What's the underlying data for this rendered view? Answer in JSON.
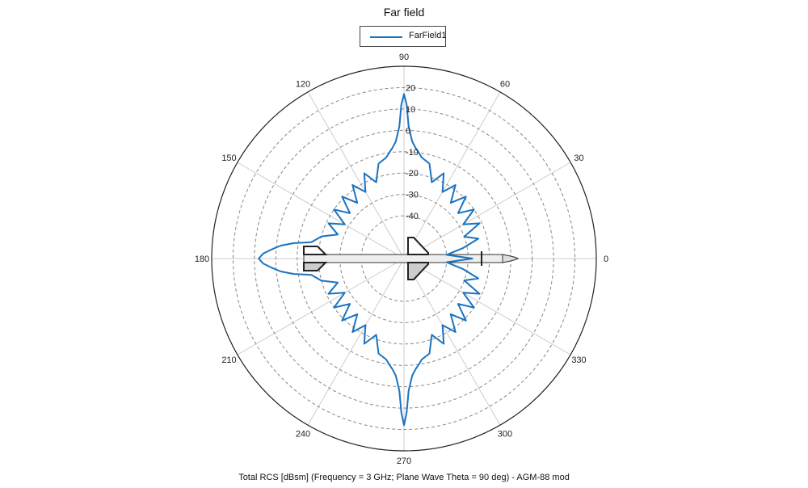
{
  "chart_data": {
    "type": "polar-line",
    "title": "Far field",
    "caption": "Total RCS [dBsm] (Frequency = 3 GHz; Plane Wave Theta = 90 deg) - AGM-88 mod",
    "legend": {
      "placement": "top-center",
      "entries": [
        "FarField1"
      ]
    },
    "angular_axis": {
      "unit": "deg",
      "tick_labels": [
        "0",
        "30",
        "60",
        "90",
        "120",
        "150",
        "180",
        "210",
        "240",
        "270",
        "300",
        "330"
      ],
      "tick_values": [
        0,
        30,
        60,
        90,
        120,
        150,
        180,
        210,
        240,
        270,
        300,
        330
      ],
      "direction": "counterclockwise",
      "zero_at": "right"
    },
    "radial_axis": {
      "unit": "dBsm",
      "range": [
        -60,
        30
      ],
      "tick_labels": [
        "-40",
        "-30",
        "-20",
        "-10",
        "0",
        "10",
        "20"
      ],
      "tick_values": [
        -40,
        -30,
        -20,
        -10,
        0,
        10,
        20
      ],
      "grid": "dashed"
    },
    "series": [
      {
        "name": "FarField1",
        "color": "#1a73c0",
        "phi_deg": [
          0,
          5,
          10,
          15,
          20,
          25,
          30,
          35,
          40,
          45,
          50,
          55,
          60,
          65,
          70,
          75,
          80,
          82,
          84,
          86,
          88,
          89,
          90,
          91,
          92,
          94,
          96,
          98,
          100,
          105,
          110,
          115,
          120,
          125,
          130,
          135,
          140,
          145,
          150,
          155,
          160,
          165,
          170,
          172,
          174,
          176,
          178,
          180,
          182,
          184,
          186,
          188,
          190,
          195,
          200,
          205,
          210,
          215,
          220,
          225,
          230,
          235,
          240,
          245,
          250,
          255,
          260,
          262,
          264,
          266,
          268,
          269,
          270,
          271,
          272,
          274,
          276,
          278,
          280,
          285,
          290,
          295,
          300,
          305,
          310,
          315,
          320,
          325,
          330,
          335,
          340,
          345,
          350,
          355,
          360
        ],
        "rcs_dbsm": [
          -28,
          -40,
          -32,
          -24,
          -30,
          -21,
          -28,
          -20,
          -27,
          -19,
          -26,
          -18,
          -24,
          -16,
          -22,
          -14,
          -12,
          -10,
          -8,
          -5,
          2,
          12,
          17,
          12,
          2,
          -5,
          -8,
          -10,
          -12,
          -14,
          -22,
          -16,
          -24,
          -18,
          -26,
          -19,
          -27,
          -20,
          -28,
          -21,
          -27,
          -20,
          -16,
          -8,
          -2,
          2,
          6,
          8,
          6,
          2,
          -2,
          -8,
          -16,
          -20,
          -27,
          -21,
          -28,
          -20,
          -27,
          -19,
          -26,
          -18,
          -24,
          -16,
          -22,
          -14,
          -12,
          -10,
          -8,
          -5,
          2,
          12,
          18,
          12,
          2,
          -5,
          -8,
          -10,
          -12,
          -14,
          -22,
          -16,
          -24,
          -18,
          -26,
          -19,
          -27,
          -20,
          -28,
          -21,
          -30,
          -24,
          -32,
          -40,
          -28
        ]
      }
    ]
  }
}
